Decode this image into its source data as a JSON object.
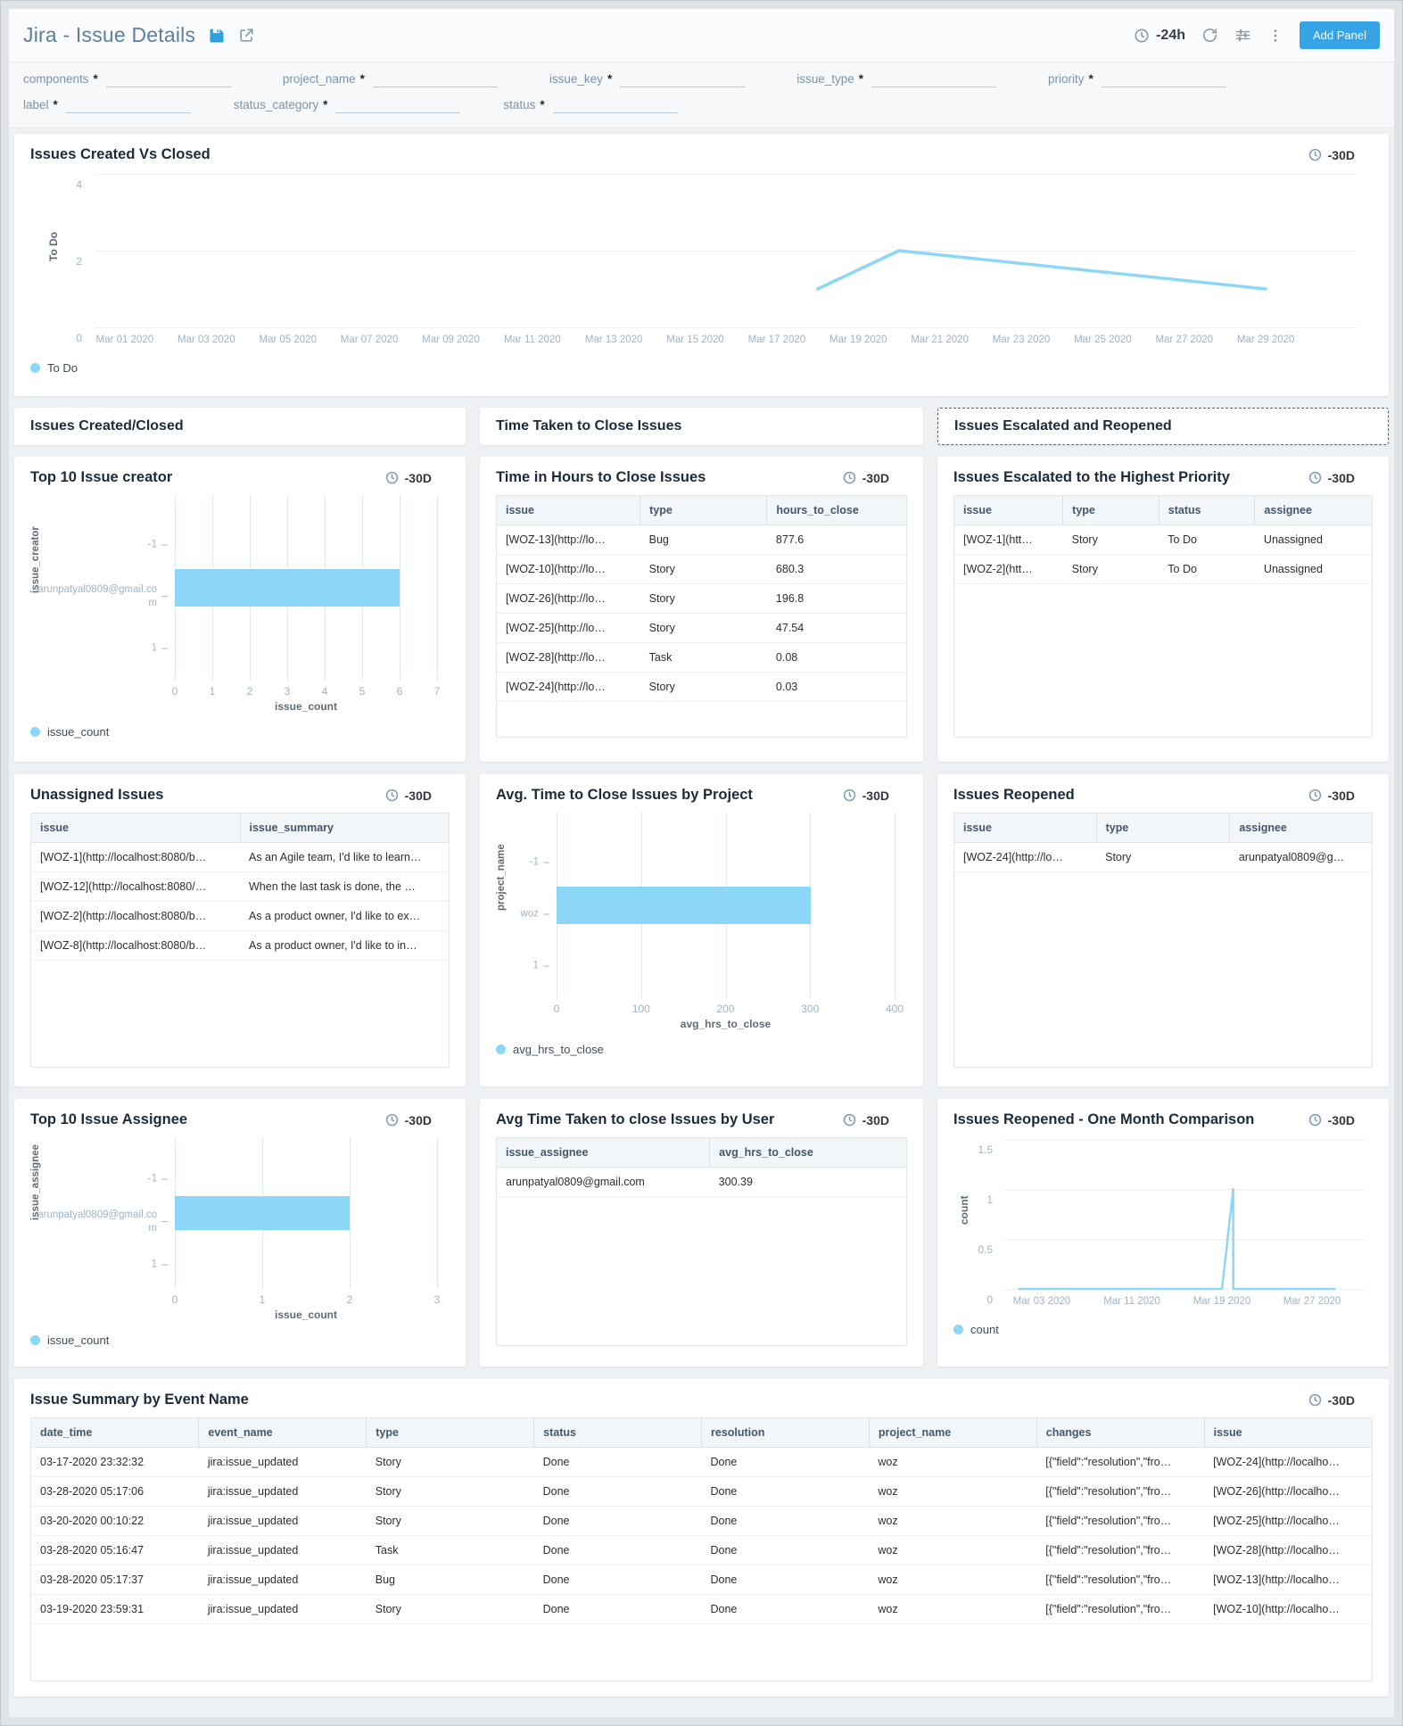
{
  "header": {
    "title": "Jira - Issue Details",
    "time_range": "-24h",
    "add_panel": "Add Panel"
  },
  "filters": {
    "required": "*",
    "row1": [
      "components",
      "project_name",
      "issue_key",
      "issue_type",
      "priority"
    ],
    "row2": [
      "label",
      "status_category",
      "status"
    ]
  },
  "sections": {
    "created_closed": "Issues Created/Closed",
    "time_taken": "Time Taken to Close Issues",
    "escalated_reopened": "Issues Escalated and Reopened"
  },
  "panels": {
    "created_vs_closed": {
      "title": "Issues Created Vs Closed",
      "badge": "-30D",
      "legend": "To Do"
    },
    "top_creator": {
      "title": "Top 10 Issue creator",
      "badge": "-30D",
      "legend": "issue_count"
    },
    "time_hours": {
      "title": "Time in Hours to Close Issues",
      "badge": "-30D",
      "table": {
        "headers": [
          "issue",
          "type",
          "hours_to_close"
        ],
        "rows": [
          [
            "[WOZ-13](http://lo…",
            "Bug",
            "877.6"
          ],
          [
            "[WOZ-10](http://lo…",
            "Story",
            "680.3"
          ],
          [
            "[WOZ-26](http://lo…",
            "Story",
            "196.8"
          ],
          [
            "[WOZ-25](http://lo…",
            "Story",
            "47.54"
          ],
          [
            "[WOZ-28](http://lo…",
            "Task",
            "0.08"
          ],
          [
            "[WOZ-24](http://lo…",
            "Story",
            "0.03"
          ]
        ]
      }
    },
    "escalated": {
      "title": "Issues Escalated to the Highest Priority",
      "badge": "-30D",
      "table": {
        "headers": [
          "issue",
          "type",
          "status",
          "assignee"
        ],
        "rows": [
          [
            "[WOZ-1](htt…",
            "Story",
            "To Do",
            "Unassigned"
          ],
          [
            "[WOZ-2](htt…",
            "Story",
            "To Do",
            "Unassigned"
          ]
        ]
      }
    },
    "unassigned": {
      "title": "Unassigned Issues",
      "badge": "-30D",
      "table": {
        "headers": [
          "issue",
          "issue_summary"
        ],
        "rows": [
          [
            "[WOZ-1](http://localhost:8080/b…",
            "As an Agile team, I'd like to learn…"
          ],
          [
            "[WOZ-12](http://localhost:8080/…",
            "When the last task is done, the …"
          ],
          [
            "[WOZ-2](http://localhost:8080/b…",
            "As a product owner, I'd like to ex…"
          ],
          [
            "[WOZ-8](http://localhost:8080/b…",
            "As a product owner, I'd like to in…"
          ]
        ]
      }
    },
    "avg_project": {
      "title": "Avg. Time to Close Issues by Project",
      "badge": "-30D",
      "legend": "avg_hrs_to_close"
    },
    "reopened": {
      "title": "Issues Reopened",
      "badge": "-30D",
      "table": {
        "headers": [
          "issue",
          "type",
          "assignee"
        ],
        "rows": [
          [
            "[WOZ-24](http://lo…",
            "Story",
            "arunpatyal0809@g…"
          ]
        ]
      }
    },
    "top_assignee": {
      "title": "Top 10 Issue Assignee",
      "badge": "-30D",
      "legend": "issue_count"
    },
    "avg_user": {
      "title": "Avg Time Taken to close Issues by User",
      "badge": "-30D",
      "table": {
        "headers": [
          "issue_assignee",
          "avg_hrs_to_close"
        ],
        "rows": [
          [
            "arunpatyal0809@gmail.com",
            "300.39"
          ]
        ]
      }
    },
    "reopened_comparison": {
      "title": "Issues Reopened - One Month Comparison",
      "badge": "-30D",
      "legend": "count"
    },
    "event_summary": {
      "title": "Issue Summary by Event Name",
      "badge": "-30D",
      "table": {
        "headers": [
          "date_time",
          "event_name",
          "type",
          "status",
          "resolution",
          "project_name",
          "changes",
          "issue"
        ],
        "rows": [
          [
            "03-17-2020 23:32:32",
            "jira:issue_updated",
            "Story",
            "Done",
            "Done",
            "woz",
            "[{\"field\":\"resolution\",\"fro…",
            "[WOZ-24](http://localho…"
          ],
          [
            "03-28-2020 05:17:06",
            "jira:issue_updated",
            "Story",
            "Done",
            "Done",
            "woz",
            "[{\"field\":\"resolution\",\"fro…",
            "[WOZ-26](http://localho…"
          ],
          [
            "03-20-2020 00:10:22",
            "jira:issue_updated",
            "Story",
            "Done",
            "Done",
            "woz",
            "[{\"field\":\"resolution\",\"fro…",
            "[WOZ-25](http://localho…"
          ],
          [
            "03-28-2020 05:16:47",
            "jira:issue_updated",
            "Task",
            "Done",
            "Done",
            "woz",
            "[{\"field\":\"resolution\",\"fro…",
            "[WOZ-28](http://localho…"
          ],
          [
            "03-28-2020 05:17:37",
            "jira:issue_updated",
            "Bug",
            "Done",
            "Done",
            "woz",
            "[{\"field\":\"resolution\",\"fro…",
            "[WOZ-13](http://localho…"
          ],
          [
            "03-19-2020 23:59:31",
            "jira:issue_updated",
            "Story",
            "Done",
            "Done",
            "woz",
            "[{\"field\":\"resolution\",\"fro…",
            "[WOZ-10](http://localho…"
          ]
        ]
      }
    }
  },
  "colors": {
    "accent": "#8cd7f7",
    "button_blue": "#35a3e6",
    "title_navy": "#1c2b3b"
  },
  "chart_data": [
    {
      "id": "created_vs_closed",
      "type": "line",
      "title": "Issues Created Vs Closed",
      "ylabel": "To Do",
      "yticks": [
        "4",
        "2",
        "0"
      ],
      "ylim": [
        0,
        4
      ],
      "grid": "horizontal",
      "legend_position": "bottom-left",
      "xticks": [
        "Mar 01 2020",
        "Mar 03 2020",
        "Mar 05 2020",
        "Mar 07 2020",
        "Mar 09 2020",
        "Mar 11 2020",
        "Mar 13 2020",
        "Mar 15 2020",
        "Mar 17 2020",
        "Mar 19 2020",
        "Mar 21 2020",
        "Mar 23 2020",
        "Mar 25 2020",
        "Mar 27 2020",
        "Mar 29 2020"
      ],
      "series": [
        {
          "name": "To Do",
          "color": "#8cd7f7",
          "points": [
            {
              "x": "Mar 18 2020",
              "y": 1
            },
            {
              "x": "Mar 20 2020",
              "y": 2
            },
            {
              "x": "Mar 29 2020",
              "y": 1
            }
          ]
        }
      ]
    },
    {
      "id": "top_creator",
      "type": "bar",
      "orientation": "horizontal",
      "title": "Top 10 Issue creator",
      "categories": [
        "-1",
        "arunpatyal0809@gmail.com",
        "1"
      ],
      "values": [
        null,
        6,
        null
      ],
      "xticks": [
        "0",
        "1",
        "2",
        "3",
        "4",
        "5",
        "6",
        "7"
      ],
      "xlim": [
        0,
        7
      ],
      "xlabel": "issue_count",
      "ylabel": "issue_creator",
      "series_name": "issue_count",
      "color": "#8cd7f7"
    },
    {
      "id": "avg_project",
      "type": "bar",
      "orientation": "horizontal",
      "title": "Avg. Time to Close Issues by Project",
      "categories": [
        "-1",
        "woz",
        "1"
      ],
      "values": [
        null,
        300.39,
        null
      ],
      "xticks": [
        "0",
        "100",
        "200",
        "300",
        "400"
      ],
      "xlim": [
        0,
        400
      ],
      "xlabel": "avg_hrs_to_close",
      "ylabel": "project_name",
      "series_name": "avg_hrs_to_close",
      "color": "#8cd7f7"
    },
    {
      "id": "top_assignee",
      "type": "bar",
      "orientation": "horizontal",
      "title": "Top 10 Issue Assignee",
      "categories": [
        "-1",
        "arunpatyal0809@gmail.com",
        "1"
      ],
      "values": [
        null,
        2,
        null
      ],
      "xticks": [
        "0",
        "1",
        "2",
        "3"
      ],
      "xlim": [
        0,
        3
      ],
      "xlabel": "issue_count",
      "ylabel": "issue_assignee",
      "series_name": "issue_count",
      "color": "#8cd7f7"
    },
    {
      "id": "reopened_comparison",
      "type": "line",
      "title": "Issues Reopened - One Month Comparison",
      "ylabel": "count",
      "yticks": [
        "1.5",
        "1",
        "0.5",
        "0"
      ],
      "ylim": [
        0,
        1.5
      ],
      "grid": "horizontal",
      "legend_position": "bottom-left",
      "xticks": [
        "Mar 03 2020",
        "Mar 11 2020",
        "Mar 19 2020",
        "Mar 27 2020"
      ],
      "series": [
        {
          "name": "count",
          "color": "#8cd7f7",
          "points": [
            {
              "x": "Mar 01 2020",
              "y": 0
            },
            {
              "x": "Mar 19 2020",
              "y": 0
            },
            {
              "x": "Mar 20 2020",
              "y": 1
            },
            {
              "x": "Mar 20 2020",
              "y": 0
            },
            {
              "x": "Mar 29 2020",
              "y": 0
            }
          ]
        }
      ]
    }
  ]
}
